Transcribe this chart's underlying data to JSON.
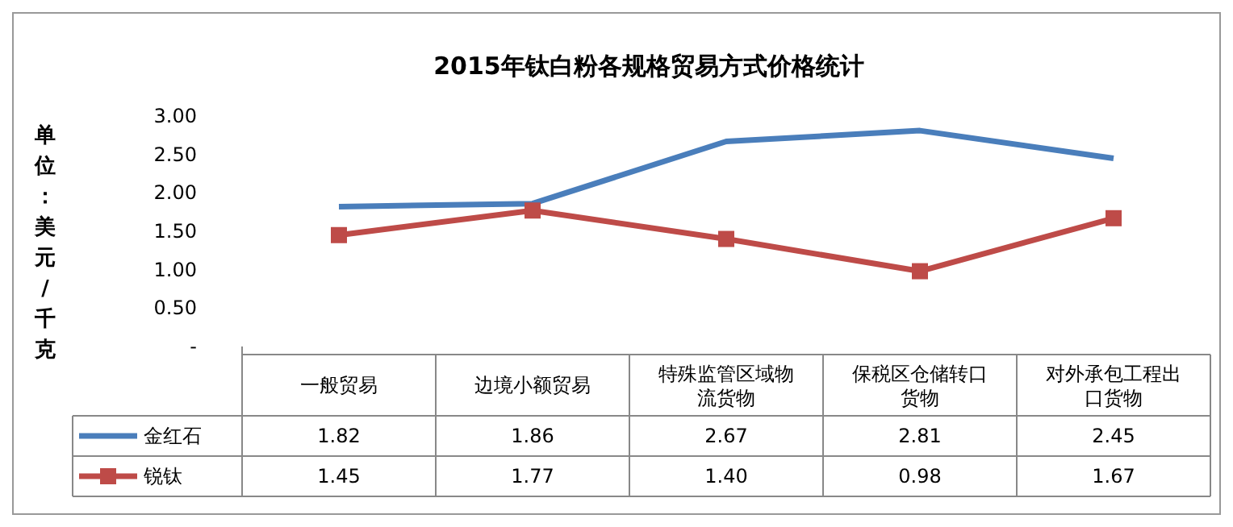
{
  "chart_data": {
    "type": "line",
    "title": "2015年钛白粉各规格贸易方式价格统计",
    "ylabel": "单位：美元/千克",
    "categories": [
      "一般贸易",
      "边境小额贸易",
      "特殊监管区域物流货物",
      "保税区仓储转口货物",
      "对外承包工程出口货物"
    ],
    "series": [
      {
        "name": "金红石",
        "color": "#4a7ebb",
        "marker": "none",
        "values": [
          1.82,
          1.86,
          2.67,
          2.81,
          2.45
        ],
        "value_labels": [
          "1.82",
          "1.86",
          "2.67",
          "2.81",
          "2.45"
        ]
      },
      {
        "name": "锐钛",
        "color": "#be4b48",
        "marker": "square",
        "values": [
          1.45,
          1.77,
          1.4,
          0.98,
          1.67
        ],
        "value_labels": [
          "1.45",
          "1.77",
          "1.40",
          "0.98",
          "1.67"
        ]
      }
    ],
    "ylim": [
      0,
      3
    ],
    "yticks": [
      {
        "value": 0,
        "label": "-"
      },
      {
        "value": 0.5,
        "label": "0.50"
      },
      {
        "value": 1,
        "label": "1.00"
      },
      {
        "value": 1.5,
        "label": "1.50"
      },
      {
        "value": 2,
        "label": "2.00"
      },
      {
        "value": 2.5,
        "label": "2.50"
      },
      {
        "value": 3,
        "label": "3.00"
      }
    ],
    "legend": "bottom left",
    "grid": false
  }
}
